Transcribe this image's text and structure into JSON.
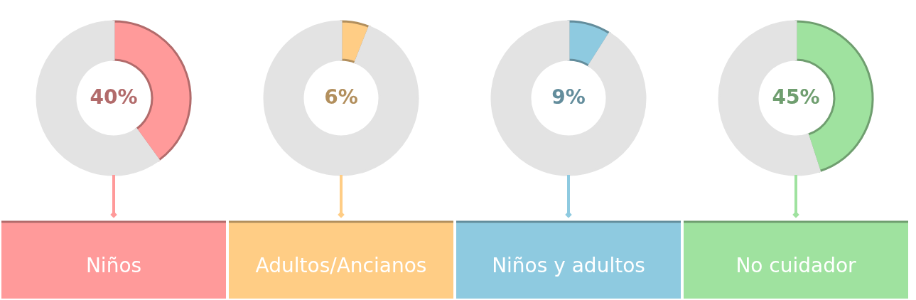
{
  "chart_data": [
    {
      "type": "donut",
      "title": "Niños",
      "categories": [
        null,
        null
      ],
      "values": [
        40,
        60
      ],
      "colors": [
        "#ff9a9a",
        "#e3e3e3"
      ],
      "value_labels": [
        "40%",
        null
      ]
    },
    {
      "type": "donut",
      "title": "Adultos/Ancianos",
      "categories": [
        null,
        null
      ],
      "values": [
        6,
        94
      ],
      "colors": [
        "#ffcd85",
        "#e3e3e3"
      ],
      "value_labels": [
        "6%",
        null
      ]
    },
    {
      "type": "donut",
      "title": "Niños y adultos",
      "categories": [
        null,
        null
      ],
      "values": [
        9,
        91
      ],
      "colors": [
        "#8ecae0",
        "#e3e3e3"
      ],
      "value_labels": [
        "9%",
        null
      ]
    },
    {
      "type": "donut",
      "title": "No cuidador",
      "categories": [
        null,
        null
      ],
      "values": [
        45,
        55
      ],
      "colors": [
        "#9fe29f",
        "#e3e3e3"
      ],
      "value_labels": [
        "45%",
        null
      ]
    }
  ]
}
